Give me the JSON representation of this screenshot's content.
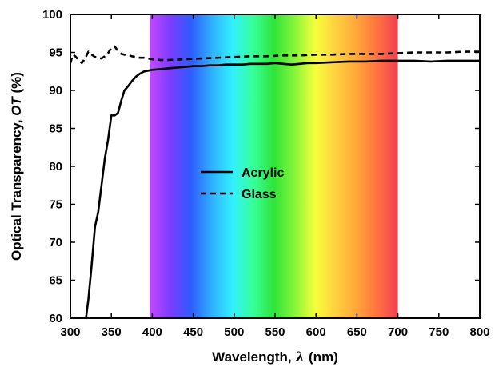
{
  "chart_data": {
    "type": "line",
    "xlabel": "Wavelength, ",
    "xlabel_symbol": "λ",
    "xlabel_unit": " (nm)",
    "ylabel": "Optical Transparency, ",
    "ylabel_symbol": "OT",
    "ylabel_unit": " (%)",
    "xlim": [
      300,
      800
    ],
    "ylim": [
      60,
      100
    ],
    "x_ticks": [
      300,
      350,
      400,
      450,
      500,
      550,
      600,
      650,
      700,
      750,
      800
    ],
    "y_ticks": [
      60,
      65,
      70,
      75,
      80,
      85,
      90,
      95,
      100
    ],
    "grid": false,
    "legend_position": "center-left",
    "spectrum_band": [
      397,
      700
    ],
    "spectrum_colors": [
      "#c447ff",
      "#7b3cff",
      "#2f5cff",
      "#2fb0ff",
      "#33f0ff",
      "#37ff9a",
      "#2ee43a",
      "#86f53a",
      "#f5ff3c",
      "#ffd040",
      "#ffa838",
      "#ff7240",
      "#f04050"
    ],
    "series": [
      {
        "name": "Acrylic",
        "style": "solid",
        "x": [
          319,
          322,
          326,
          330,
          334,
          338,
          342,
          346,
          350,
          354,
          358,
          362,
          366,
          370,
          375,
          380,
          385,
          390,
          395,
          400,
          410,
          420,
          430,
          440,
          450,
          460,
          470,
          480,
          490,
          500,
          510,
          520,
          530,
          540,
          550,
          560,
          570,
          580,
          590,
          600,
          620,
          640,
          660,
          680,
          700,
          720,
          740,
          760,
          780,
          800
        ],
        "y": [
          60,
          62.5,
          67,
          72,
          74,
          77.5,
          81,
          83.5,
          86.7,
          86.7,
          87,
          88.6,
          90,
          90.5,
          91.2,
          91.8,
          92.2,
          92.5,
          92.6,
          92.7,
          92.8,
          92.9,
          93.0,
          93.1,
          93.2,
          93.2,
          93.3,
          93.3,
          93.4,
          93.4,
          93.4,
          93.5,
          93.5,
          93.5,
          93.6,
          93.5,
          93.4,
          93.5,
          93.6,
          93.6,
          93.7,
          93.8,
          93.8,
          93.9,
          93.9,
          93.9,
          93.8,
          93.9,
          93.9,
          93.9
        ]
      },
      {
        "name": "Glass",
        "style": "dashed",
        "x": [
          300,
          303,
          306,
          310,
          314,
          318,
          322,
          326,
          330,
          334,
          338,
          342,
          346,
          350,
          354,
          358,
          362,
          366,
          370,
          375,
          380,
          385,
          390,
          395,
          400,
          410,
          420,
          440,
          460,
          480,
          500,
          520,
          540,
          560,
          580,
          600,
          620,
          640,
          660,
          680,
          700,
          720,
          740,
          760,
          780,
          800
        ],
        "y": [
          93.6,
          94.7,
          94.5,
          94.0,
          93.6,
          94.2,
          95.1,
          94.7,
          94.4,
          94.3,
          94.2,
          94.5,
          94.9,
          95.6,
          95.8,
          95.2,
          94.8,
          94.7,
          94.7,
          94.5,
          94.4,
          94.3,
          94.3,
          94.2,
          94.1,
          94.0,
          94.0,
          94.1,
          94.2,
          94.3,
          94.4,
          94.5,
          94.5,
          94.6,
          94.6,
          94.7,
          94.7,
          94.8,
          94.8,
          94.8,
          94.9,
          95.0,
          95.0,
          95.0,
          95.1,
          95.1
        ]
      }
    ]
  }
}
